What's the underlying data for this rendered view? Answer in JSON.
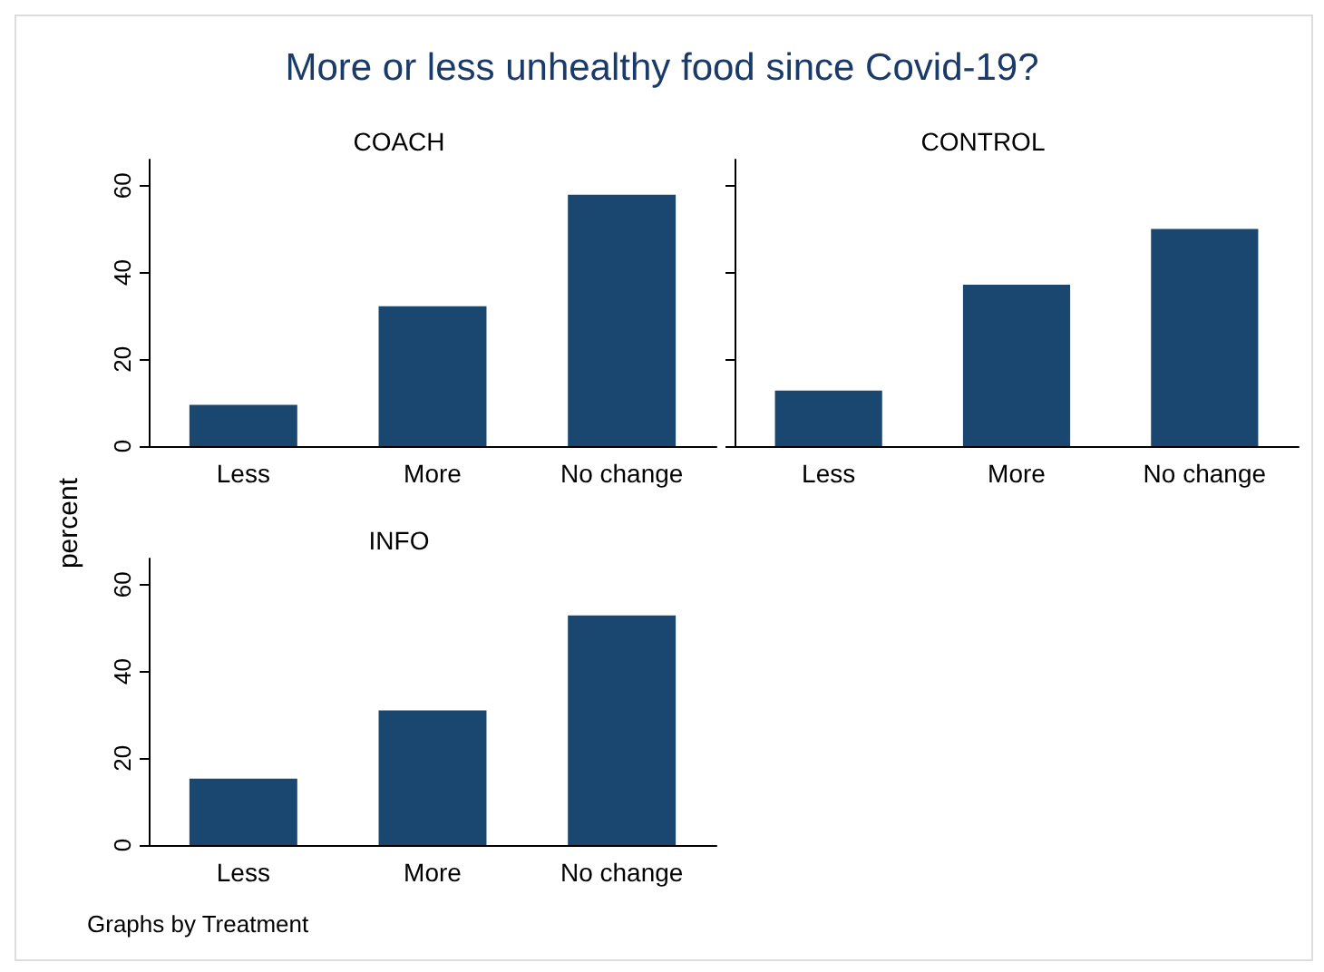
{
  "chart_data": [
    {
      "type": "bar",
      "title": "More or less unhealthy food since Covid-19?",
      "subtitle": "COACH",
      "ylabel": "percent",
      "categories": [
        "Less",
        "More",
        "No change"
      ],
      "values": [
        9.5,
        32.2,
        57.9
      ],
      "color": "#1a476f",
      "ylim": [
        0,
        66
      ],
      "yticks": [
        0,
        20,
        40,
        60
      ],
      "grid": false
    },
    {
      "type": "bar",
      "subtitle": "CONTROL",
      "categories": [
        "Less",
        "More",
        "No change"
      ],
      "values": [
        12.8,
        37.2,
        50
      ],
      "color": "#1a476f",
      "ylim": [
        0,
        66
      ],
      "yticks": [
        0,
        20,
        40,
        60
      ],
      "tick_labels": "x",
      "grid": false
    },
    {
      "type": "bar",
      "subtitle": "INFO",
      "categories": [
        "Less",
        "More",
        "No change"
      ],
      "values": [
        15.3,
        31,
        52.9
      ],
      "color": "#1a476f",
      "ylim": [
        0,
        66
      ],
      "yticks": [
        0,
        20,
        40,
        60
      ],
      "grid": false,
      "annotations": [
        "Graphs by Treatment"
      ]
    }
  ]
}
